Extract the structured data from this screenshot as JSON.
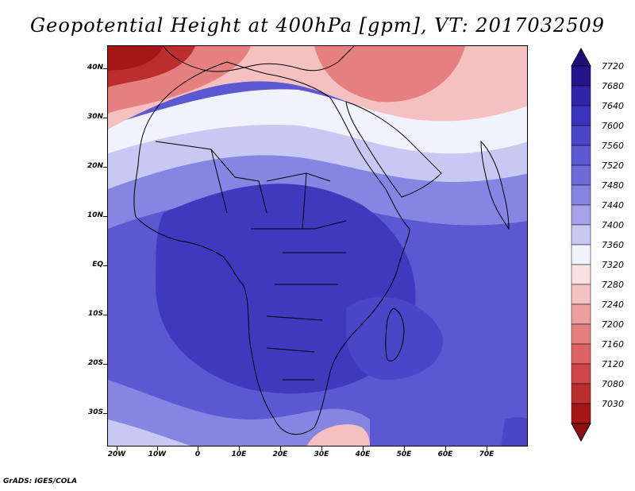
{
  "title": "Geopotential Height at 400hPa [gpm], VT: 2017032509",
  "credit": "GrADS: IGES/COLA",
  "lat_labels": [
    "40N",
    "30N",
    "20N",
    "10N",
    "EQ",
    "10S",
    "20S",
    "30S"
  ],
  "lon_labels": [
    "20W",
    "10W",
    "0",
    "10E",
    "20E",
    "30E",
    "40E",
    "50E",
    "60E",
    "70E"
  ],
  "colorbar": {
    "labels": [
      "7720",
      "7680",
      "7640",
      "7600",
      "7560",
      "7520",
      "7480",
      "7440",
      "7400",
      "7360",
      "7320",
      "7280",
      "7240",
      "7200",
      "7160",
      "7120",
      "7080",
      "7030"
    ],
    "colors": [
      "#25138c",
      "#2f25a8",
      "#3a34bd",
      "#4a45c9",
      "#5c58d2",
      "#6e6bd9",
      "#8785e2",
      "#a5a4ea",
      "#c8c8f3",
      "#f2f2ff",
      "#fae0e0",
      "#f5c0c0",
      "#ee9f9f",
      "#e68080",
      "#de6262",
      "#d14646",
      "#bc2e2e",
      "#a51717"
    ],
    "top_color": "#1e0e78",
    "bottom_color": "#8e0f0f"
  },
  "field_colors": {
    "deep": "#4b45c8",
    "core": "#4038bd",
    "mid": "#5c58d2",
    "light": "#8785e2",
    "pale": "#c8c8f3",
    "white": "#f2f2ff",
    "pink": "#f5c0c0",
    "red": "#e68080",
    "dark_red": "#bc2e2e",
    "darkest": "#a51717"
  }
}
